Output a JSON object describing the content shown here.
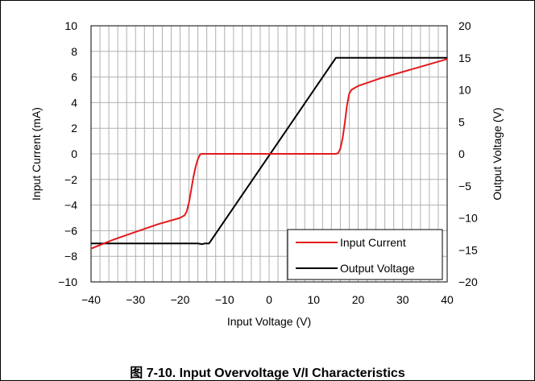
{
  "caption": "图 7-10. Input Overvoltage V/I Characteristics",
  "chart_data": {
    "type": "line",
    "title": "",
    "xlabel": "Input Voltage (V)",
    "ylabel": "Input Current (mA)",
    "y2label": "Output Voltage (V)",
    "xlim": [
      -40,
      40
    ],
    "ylim": [
      -10,
      10
    ],
    "y2lim": [
      -20,
      20
    ],
    "xticks": [
      "−40",
      "−30",
      "−20",
      "−10",
      "0",
      "10",
      "20",
      "30",
      "40"
    ],
    "yticks": [
      "−10",
      "−8",
      "−6",
      "−4",
      "−2",
      "0",
      "2",
      "4",
      "6",
      "8",
      "10"
    ],
    "y2ticks": [
      "−20",
      "−15",
      "−10",
      "−5",
      "0",
      "5",
      "10",
      "15",
      "20"
    ],
    "grid": true,
    "legend_position": "bottom-right",
    "series": [
      {
        "name": "Input Current",
        "color": "#e31a1c",
        "axis": "left",
        "x": [
          -40,
          -35,
          -30,
          -25,
          -20,
          -19,
          -18.5,
          -18,
          -17.5,
          -17,
          -16.5,
          -16,
          -15.5,
          -15.2,
          -15,
          15,
          15.5,
          16,
          16.5,
          17,
          17.5,
          18,
          18.5,
          19,
          20,
          25,
          30,
          35,
          40
        ],
        "y": [
          -7.4,
          -6.7,
          -6.1,
          -5.5,
          -5.0,
          -4.8,
          -4.5,
          -3.8,
          -2.8,
          -1.8,
          -1.0,
          -0.4,
          -0.05,
          0,
          0,
          0,
          0.05,
          0.4,
          1.2,
          2.4,
          3.8,
          4.7,
          5.0,
          5.1,
          5.3,
          5.9,
          6.4,
          6.9,
          7.4
        ]
      },
      {
        "name": "Output Voltage",
        "color": "#000000",
        "axis": "right",
        "x": [
          -40,
          -16,
          -15,
          -14.5,
          -14,
          -13.5,
          15,
          15.5,
          40
        ],
        "y": [
          -14,
          -14,
          -14.1,
          -14.0,
          -14.0,
          -14.0,
          15,
          15,
          15
        ]
      }
    ]
  }
}
